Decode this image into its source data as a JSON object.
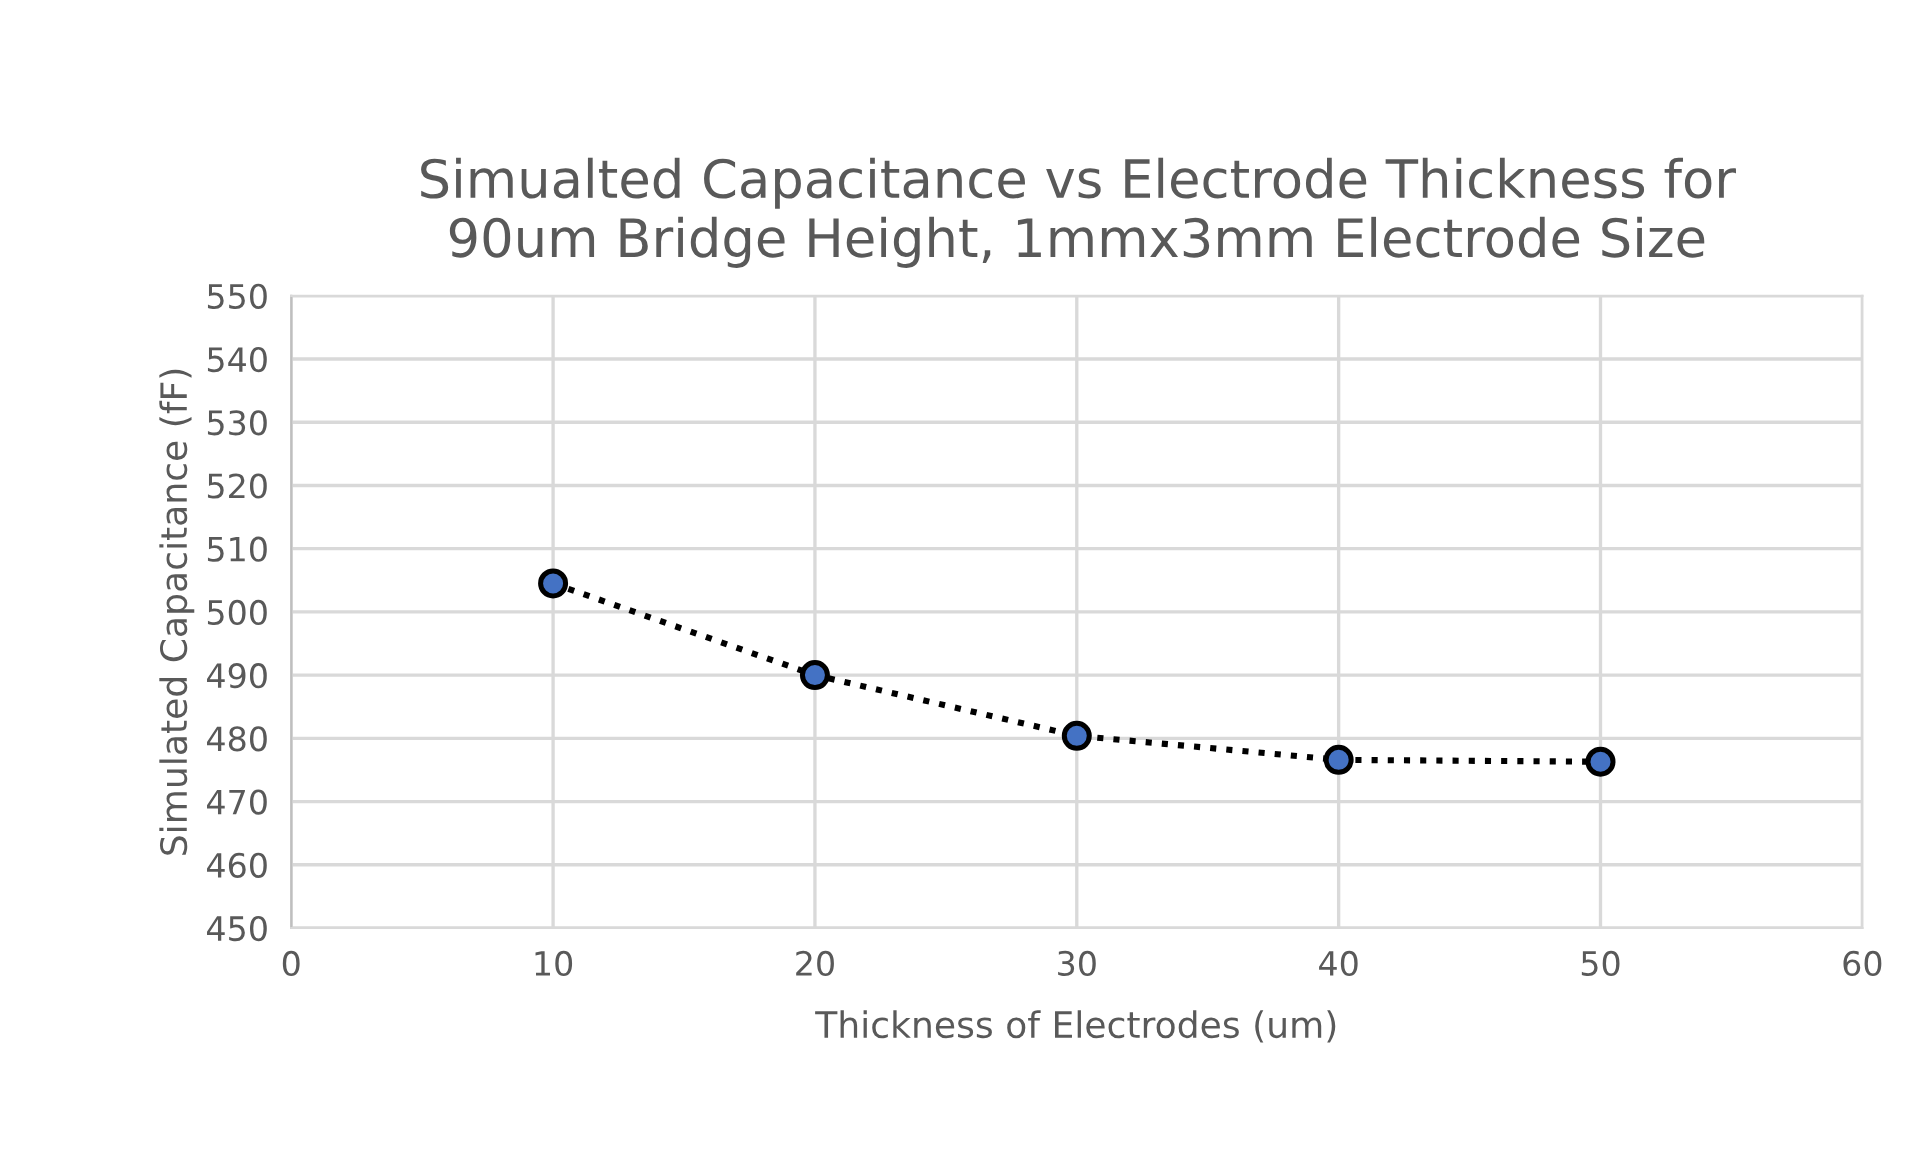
{
  "chart_data": {
    "type": "line",
    "title": "Simualted Capacitance vs Electrode Thickness for\n90um Bridge Height, 1mmx3mm Electrode Size",
    "xlabel": "Thickness of Electrodes (um)",
    "ylabel": "Simulated Capacitance (fF)",
    "x": [
      10,
      20,
      30,
      40,
      50
    ],
    "series": [
      {
        "color": "#4472c4",
        "values": [
          504.5,
          490,
          480.4,
          476.6,
          476.3
        ]
      }
    ],
    "xlim": [
      0,
      60
    ],
    "xticks": [
      0,
      10,
      20,
      30,
      40,
      50,
      60
    ],
    "ylim": [
      450,
      550
    ],
    "yticks": [
      450,
      460,
      470,
      480,
      490,
      500,
      510,
      520,
      530,
      540,
      550
    ],
    "grid": true,
    "marker": "circle",
    "line_style": "dotted"
  }
}
